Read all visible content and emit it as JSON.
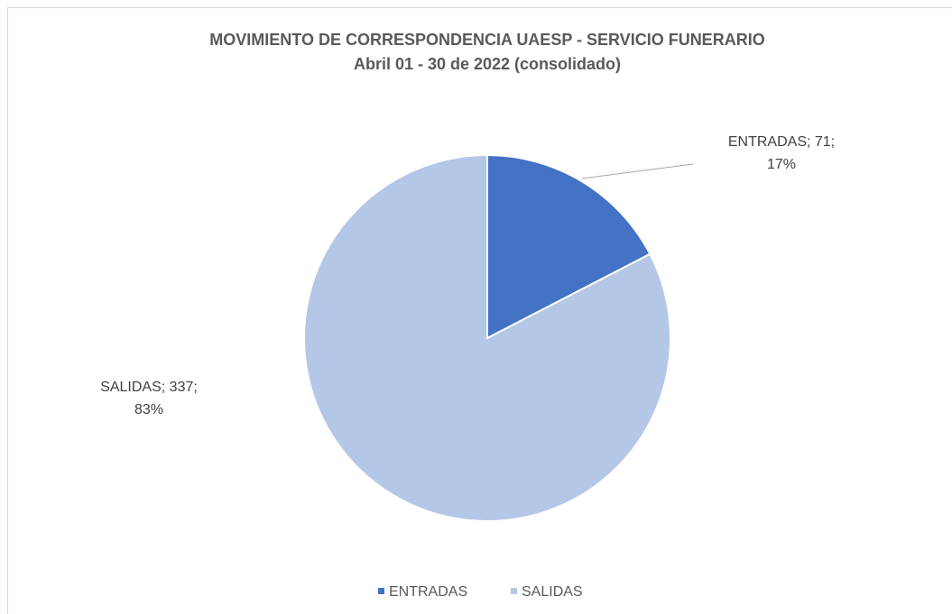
{
  "chart_data": {
    "type": "pie",
    "title": "MOVIMIENTO DE CORRESPONDENCIA  UAESP  - SERVICIO FUNERARIO",
    "subtitle": "Abril 01 - 30 de 2022 (consolidado)",
    "categories": [
      "ENTRADAS",
      "SALIDAS"
    ],
    "values": [
      71,
      337
    ],
    "value_labels": [
      [
        "ENTRADAS; 71;",
        "17%"
      ],
      [
        "SALIDAS; 337;",
        "83%"
      ]
    ],
    "colors": [
      "#4472c4",
      "#b4c7e7"
    ],
    "legend": "bottom"
  }
}
